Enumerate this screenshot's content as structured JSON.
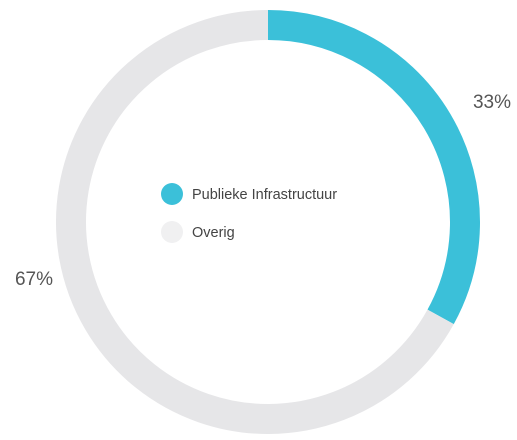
{
  "chart_data": {
    "type": "donut",
    "categories": [
      "Publieke Infrastructuur",
      "Overig"
    ],
    "values": [
      33,
      67
    ],
    "value_labels": [
      "33%",
      "67%"
    ],
    "colors": [
      "#3bc0d9",
      "#e6e6e8"
    ],
    "legend_colors": [
      "#3bc0d9",
      "#f0f0f1"
    ]
  }
}
